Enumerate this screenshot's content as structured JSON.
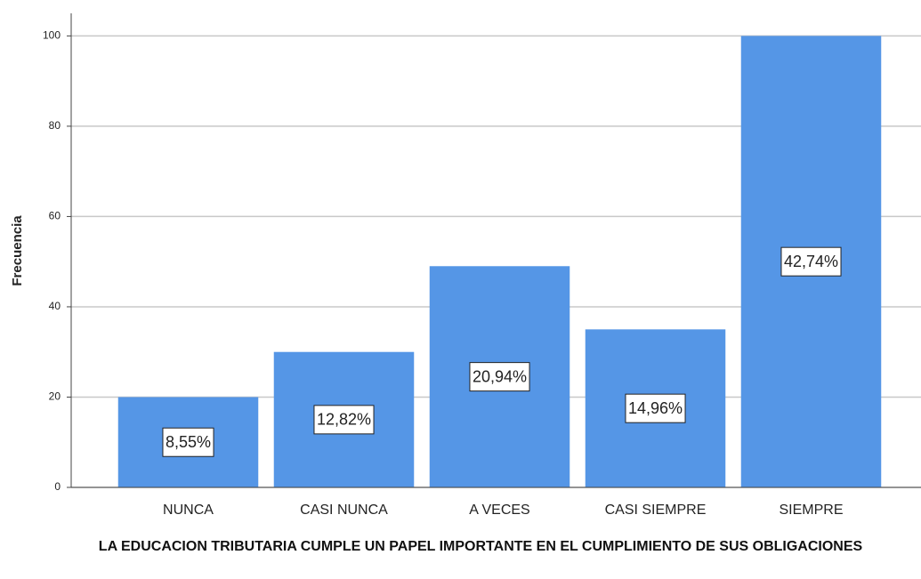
{
  "chart_data": {
    "type": "bar",
    "y_label": "Frecuencia",
    "x_label": "LA EDUCACION TRIBUTARIA CUMPLE UN PAPEL IMPORTANTE EN EL CUMPLIMIENTO DE SUS OBLIGACIONES",
    "categories": [
      "NUNCA",
      "CASI NUNCA",
      "A VECES",
      "CASI SIEMPRE",
      "SIEMPRE"
    ],
    "values": [
      20,
      30,
      49,
      35,
      100
    ],
    "data_labels": [
      "8,55%",
      "12,82%",
      "20,94%",
      "14,96%",
      "42,74%"
    ],
    "color": "#5596e6",
    "ylim": [
      0,
      105
    ],
    "yticks": [
      0,
      20,
      40,
      60,
      80,
      100
    ],
    "grid": true
  }
}
